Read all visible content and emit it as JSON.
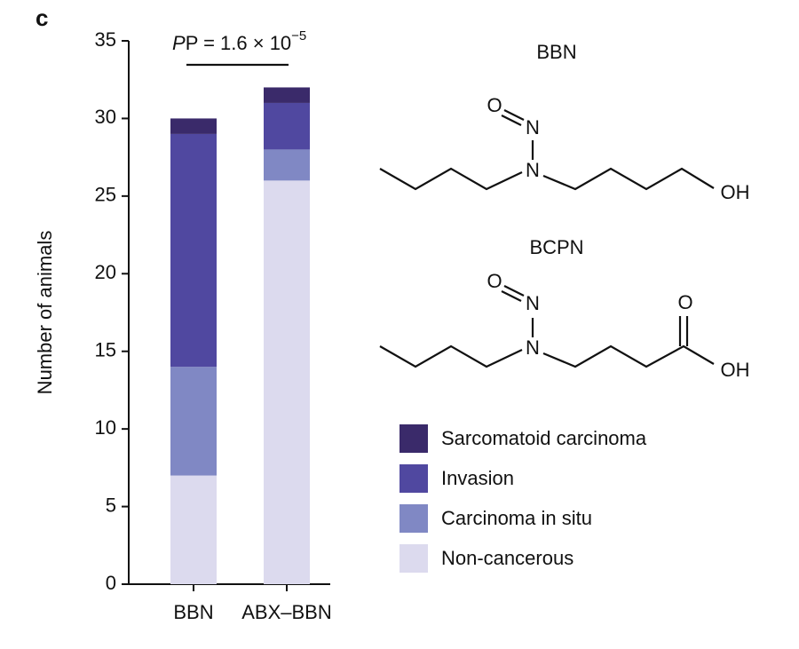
{
  "panel_label": "c",
  "chart_data": {
    "type": "stacked_bar",
    "ylabel": "Number of animals",
    "categories": [
      "BBN",
      "ABX–BBN"
    ],
    "series": [
      {
        "name": "Non-cancerous",
        "color": "#dcdaee",
        "values": [
          7,
          26
        ]
      },
      {
        "name": "Carcinoma in situ",
        "color": "#8088c4",
        "values": [
          7,
          2
        ]
      },
      {
        "name": "Invasion",
        "color": "#5048a0",
        "values": [
          15,
          3
        ]
      },
      {
        "name": "Sarcomatoid carcinoma",
        "color": "#3a2a6a",
        "values": [
          1,
          1
        ]
      }
    ],
    "ylim": [
      0,
      35
    ],
    "yticks": [
      0,
      5,
      10,
      15,
      20,
      25,
      30,
      35
    ],
    "annotation": {
      "text": "P = 1.6 × 10",
      "exponent": "−5"
    }
  },
  "structures": [
    {
      "name": "BBN",
      "atoms": [
        "O",
        "N",
        "N",
        "OH"
      ]
    },
    {
      "name": "BCPN",
      "atoms": [
        "O",
        "N",
        "N",
        "O",
        "OH"
      ]
    }
  ]
}
